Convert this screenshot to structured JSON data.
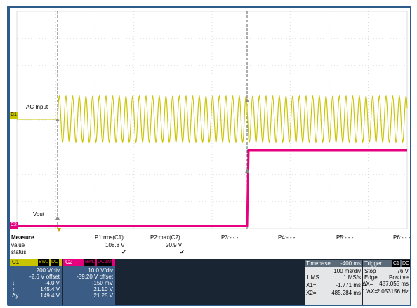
{
  "colors": {
    "frame": "#2d5b8a",
    "ch1": "#c8c400",
    "ch2": "#e6007e",
    "grid": "#c8c8c8",
    "panel": "#3b5d85"
  },
  "labels": {
    "ac_input": "AC Input",
    "vout": "Vout",
    "ch1_marker": "C1",
    "ch2_marker": "C2"
  },
  "measure": {
    "title": "Measure",
    "p1": "P1:rms(C1)",
    "p2": "P2:max(C2)",
    "p3": "P3:- - -",
    "p4": "P4:- - -",
    "p5": "P5:- - -",
    "p6": "P6:- - -",
    "value_label": "value",
    "status_label": "status",
    "p1_value": "108.8 V",
    "p2_value": "20.9 V",
    "check": "✔"
  },
  "ch1": {
    "name": "C1",
    "bw": "BwL",
    "coupling": "DC",
    "vdiv": "200 V/div",
    "offset": "-2.6 V offset",
    "v1": "-4.0 V",
    "v2": "145.4 V",
    "dv": "149.4 V",
    "s1": "↓",
    "s2": "↑",
    "s3": "Δy"
  },
  "ch2": {
    "name": "C2",
    "bw": "BwL",
    "coupling": "DC1M",
    "vdiv": "10.0 V/div",
    "offset": "-39.20 V offset",
    "v1": "-150 mV",
    "v2": "21.10 V",
    "dv": "21.25 V"
  },
  "timebase": {
    "label": "Timebase",
    "delay": "-400 ms",
    "tdiv": "100 ms/div",
    "samples": "1 MS",
    "rate": "1 MS/s",
    "x1": "X1=",
    "x1_val": "-1.771 ms",
    "x2": "X2=",
    "x2_val": "485.284 ms"
  },
  "trigger": {
    "label": "Trigger",
    "source": "C1",
    "coupling": "DC",
    "mode": "Stop",
    "level": "76 V",
    "type": "Edge",
    "slope": "Positive",
    "dx": "ΔX=",
    "dx_val": "487.055 ms",
    "inv_dx": "1/ΔX=",
    "inv_dx_val": "2.053156 Hz"
  }
}
